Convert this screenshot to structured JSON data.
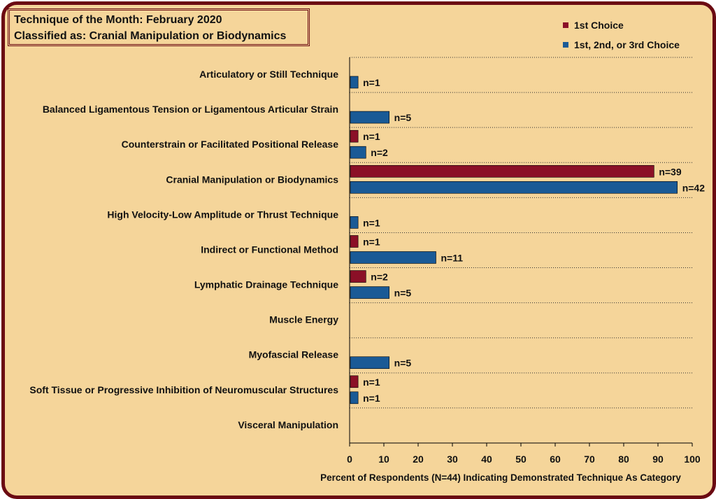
{
  "title": {
    "line1": "Technique of the Month: February 2020",
    "line2": "Classified as: Cranial Manipulation or Biodynamics"
  },
  "colors": {
    "first_choice": "#8b1027",
    "any_choice": "#1a5a96",
    "background": "#f5d59a",
    "border": "#6b0a12"
  },
  "chart_data": {
    "type": "bar",
    "orientation": "horizontal",
    "categories": [
      "Articulatory or Still Technique",
      "Balanced Ligamentous Tension or Ligamentous Articular Strain",
      "Counterstrain or Facilitated Positional Release",
      "Cranial Manipulation or Biodynamics",
      "High Velocity-Low Amplitude or Thrust Technique",
      "Indirect or Functional Method",
      "Lymphatic Drainage Technique",
      "Muscle Energy",
      "Myofascial Release",
      "Soft Tissue or Progressive Inhibition of Neuromuscular Structures",
      "Visceral Manipulation"
    ],
    "series": [
      {
        "name": "1st Choice",
        "color": "#8b1027",
        "values": [
          0,
          0,
          2.27,
          88.64,
          0,
          2.27,
          4.55,
          0,
          0,
          2.27,
          0
        ],
        "labels": [
          "",
          "",
          "n=1",
          "n=39",
          "",
          "n=1",
          "n=2",
          "",
          "",
          "n=1",
          ""
        ]
      },
      {
        "name": "1st, 2nd, or 3rd Choice",
        "color": "#1a5a96",
        "values": [
          2.27,
          11.36,
          4.55,
          95.45,
          2.27,
          25.0,
          11.36,
          0,
          11.36,
          2.27,
          0
        ],
        "labels": [
          "n=1",
          "n=5",
          "n=2",
          "n=42",
          "n=1",
          "n=11",
          "n=5",
          "",
          "n=5",
          "n=1",
          ""
        ]
      }
    ],
    "xlim": [
      0,
      100
    ],
    "xticks": [
      0,
      10,
      20,
      30,
      40,
      50,
      60,
      70,
      80,
      90,
      100
    ],
    "xlabel": "Percent of Respondents (N=44) Indicating Demonstrated Technique As Category",
    "ylabel": "",
    "grid": "horizontal dotted",
    "legend": "top-right"
  }
}
